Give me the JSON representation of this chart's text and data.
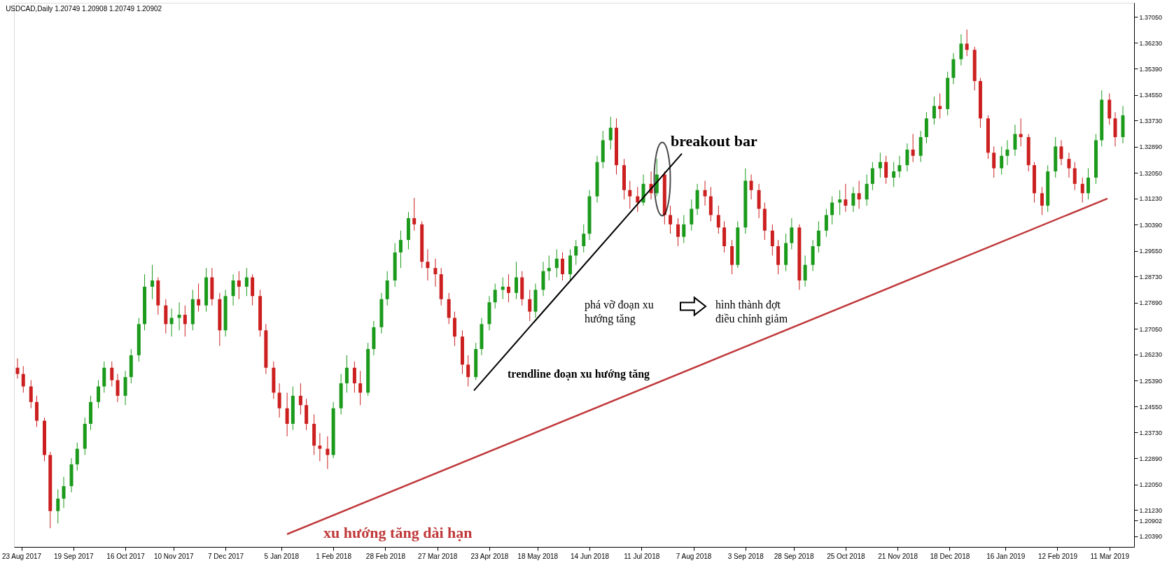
{
  "chart_data": {
    "type": "candlestick",
    "title": "USDCAD,Daily  1.20749 1.20908 1.20749 1.20902",
    "x": [
      "2017-08-21",
      "2017-08-24",
      "2017-08-28",
      "2017-08-31",
      "2017-09-04",
      "2017-09-07",
      "2017-09-11",
      "2017-09-14",
      "2017-09-18",
      "2017-09-21",
      "2017-09-25",
      "2017-09-28",
      "2017-10-02",
      "2017-10-05",
      "2017-10-09",
      "2017-10-12",
      "2017-10-16",
      "2017-10-19",
      "2017-10-23",
      "2017-10-26",
      "2017-10-30",
      "2017-11-02",
      "2017-11-06",
      "2017-11-09",
      "2017-11-13",
      "2017-11-16",
      "2017-11-20",
      "2017-11-23",
      "2017-11-27",
      "2017-11-30",
      "2017-12-04",
      "2017-12-07",
      "2017-12-11",
      "2017-12-14",
      "2017-12-18",
      "2017-12-21",
      "2017-12-25",
      "2017-12-28",
      "2018-01-01",
      "2018-01-04",
      "2018-01-08",
      "2018-01-11",
      "2018-01-15",
      "2018-01-18",
      "2018-01-22",
      "2018-01-25",
      "2018-01-29",
      "2018-02-01",
      "2018-02-05",
      "2018-02-08",
      "2018-02-12",
      "2018-02-15",
      "2018-02-19",
      "2018-02-22",
      "2018-02-26",
      "2018-03-01",
      "2018-03-05",
      "2018-03-08",
      "2018-03-12",
      "2018-03-15",
      "2018-03-19",
      "2018-03-22",
      "2018-03-26",
      "2018-03-29",
      "2018-04-02",
      "2018-04-05",
      "2018-04-09",
      "2018-04-12",
      "2018-04-16",
      "2018-04-19",
      "2018-04-23",
      "2018-04-26",
      "2018-04-30",
      "2018-05-03",
      "2018-05-07",
      "2018-05-10",
      "2018-05-14",
      "2018-05-17",
      "2018-05-21",
      "2018-05-24",
      "2018-05-28",
      "2018-05-31",
      "2018-06-04",
      "2018-06-07",
      "2018-06-11",
      "2018-06-14",
      "2018-06-18",
      "2018-06-21",
      "2018-06-25",
      "2018-06-28",
      "2018-07-02",
      "2018-07-05",
      "2018-07-09",
      "2018-07-12",
      "2018-07-16",
      "2018-07-19",
      "2018-07-23",
      "2018-07-26",
      "2018-07-30",
      "2018-08-02",
      "2018-08-06",
      "2018-08-09",
      "2018-08-13",
      "2018-08-16",
      "2018-08-20",
      "2018-08-23",
      "2018-08-27",
      "2018-08-30",
      "2018-09-03",
      "2018-09-06",
      "2018-09-10",
      "2018-09-13",
      "2018-09-17",
      "2018-09-20",
      "2018-09-24",
      "2018-09-27",
      "2018-10-01",
      "2018-10-04",
      "2018-10-08",
      "2018-10-11",
      "2018-10-15",
      "2018-10-18",
      "2018-10-22",
      "2018-10-25",
      "2018-10-29",
      "2018-11-01",
      "2018-11-05",
      "2018-11-08",
      "2018-11-12",
      "2018-11-15",
      "2018-11-19",
      "2018-11-22",
      "2018-11-26",
      "2018-11-29",
      "2018-12-03",
      "2018-12-06",
      "2018-12-10",
      "2018-12-13",
      "2018-12-17",
      "2018-12-20",
      "2018-12-24",
      "2018-12-27",
      "2018-12-31",
      "2019-01-03",
      "2019-01-07",
      "2019-01-10",
      "2019-01-14",
      "2019-01-17",
      "2019-01-21",
      "2019-01-24",
      "2019-01-28",
      "2019-01-31",
      "2019-02-04",
      "2019-02-07",
      "2019-02-11",
      "2019-02-14",
      "2019-02-18",
      "2019-02-21",
      "2019-02-25",
      "2019-02-28",
      "2019-03-04",
      "2019-03-07",
      "2019-03-11",
      "2019-03-14",
      "2019-03-18"
    ],
    "ohlc": [
      [
        1.258,
        1.261,
        1.2545,
        1.256
      ],
      [
        1.256,
        1.2585,
        1.25,
        1.252
      ],
      [
        1.252,
        1.254,
        1.245,
        1.247
      ],
      [
        1.247,
        1.249,
        1.239,
        1.241
      ],
      [
        1.241,
        1.242,
        1.228,
        1.23
      ],
      [
        1.23,
        1.231,
        1.2065,
        1.212
      ],
      [
        1.212,
        1.219,
        1.208,
        1.216
      ],
      [
        1.216,
        1.223,
        1.213,
        1.22
      ],
      [
        1.22,
        1.229,
        1.218,
        1.227
      ],
      [
        1.227,
        1.234,
        1.225,
        1.232
      ],
      [
        1.232,
        1.242,
        1.23,
        1.24
      ],
      [
        1.24,
        1.249,
        1.238,
        1.247
      ],
      [
        1.247,
        1.254,
        1.245,
        1.252
      ],
      [
        1.252,
        1.26,
        1.25,
        1.258
      ],
      [
        1.258,
        1.26,
        1.252,
        1.254
      ],
      [
        1.254,
        1.256,
        1.247,
        1.249
      ],
      [
        1.249,
        1.257,
        1.246,
        1.255
      ],
      [
        1.255,
        1.264,
        1.253,
        1.262
      ],
      [
        1.262,
        1.274,
        1.26,
        1.272
      ],
      [
        1.272,
        1.288,
        1.27,
        1.284
      ],
      [
        1.284,
        1.291,
        1.28,
        1.286
      ],
      [
        1.286,
        1.287,
        1.275,
        1.278
      ],
      [
        1.278,
        1.28,
        1.269,
        1.272
      ],
      [
        1.272,
        1.277,
        1.268,
        1.274
      ],
      [
        1.274,
        1.279,
        1.27,
        1.275
      ],
      [
        1.275,
        1.278,
        1.268,
        1.272
      ],
      [
        1.272,
        1.283,
        1.27,
        1.28
      ],
      [
        1.28,
        1.285,
        1.276,
        1.278
      ],
      [
        1.278,
        1.29,
        1.276,
        1.287
      ],
      [
        1.287,
        1.29,
        1.278,
        1.28
      ],
      [
        1.28,
        1.282,
        1.265,
        1.27
      ],
      [
        1.27,
        1.283,
        1.268,
        1.281
      ],
      [
        1.281,
        1.288,
        1.278,
        1.286
      ],
      [
        1.286,
        1.289,
        1.28,
        1.284
      ],
      [
        1.284,
        1.29,
        1.281,
        1.287
      ],
      [
        1.287,
        1.288,
        1.278,
        1.281
      ],
      [
        1.281,
        1.283,
        1.268,
        1.27
      ],
      [
        1.27,
        1.272,
        1.256,
        1.258
      ],
      [
        1.258,
        1.26,
        1.248,
        1.25
      ],
      [
        1.25,
        1.253,
        1.242,
        1.245
      ],
      [
        1.245,
        1.25,
        1.236,
        1.24
      ],
      [
        1.24,
        1.252,
        1.238,
        1.249
      ],
      [
        1.249,
        1.253,
        1.243,
        1.246
      ],
      [
        1.246,
        1.248,
        1.238,
        1.24
      ],
      [
        1.24,
        1.243,
        1.23,
        1.233
      ],
      [
        1.233,
        1.237,
        1.228,
        1.232
      ],
      [
        1.232,
        1.236,
        1.2255,
        1.23
      ],
      [
        1.23,
        1.247,
        1.229,
        1.245
      ],
      [
        1.245,
        1.256,
        1.243,
        1.253
      ],
      [
        1.253,
        1.262,
        1.25,
        1.258
      ],
      [
        1.258,
        1.26,
        1.25,
        1.253
      ],
      [
        1.253,
        1.257,
        1.246,
        1.25
      ],
      [
        1.25,
        1.266,
        1.249,
        1.264
      ],
      [
        1.264,
        1.273,
        1.262,
        1.271
      ],
      [
        1.271,
        1.282,
        1.269,
        1.28
      ],
      [
        1.28,
        1.289,
        1.278,
        1.286
      ],
      [
        1.286,
        1.298,
        1.284,
        1.295
      ],
      [
        1.295,
        1.302,
        1.29,
        1.299
      ],
      [
        1.299,
        1.308,
        1.296,
        1.306
      ],
      [
        1.306,
        1.3125,
        1.302,
        1.304
      ],
      [
        1.304,
        1.305,
        1.29,
        1.292
      ],
      [
        1.292,
        1.296,
        1.286,
        1.29
      ],
      [
        1.29,
        1.293,
        1.284,
        1.288
      ],
      [
        1.288,
        1.29,
        1.278,
        1.28
      ],
      [
        1.28,
        1.282,
        1.272,
        1.274
      ],
      [
        1.274,
        1.276,
        1.265,
        1.268
      ],
      [
        1.268,
        1.27,
        1.256,
        1.259
      ],
      [
        1.259,
        1.262,
        1.252,
        1.255
      ],
      [
        1.255,
        1.266,
        1.254,
        1.264
      ],
      [
        1.264,
        1.274,
        1.262,
        1.272
      ],
      [
        1.272,
        1.281,
        1.27,
        1.279
      ],
      [
        1.279,
        1.285,
        1.277,
        1.283
      ],
      [
        1.283,
        1.287,
        1.28,
        1.284
      ],
      [
        1.284,
        1.288,
        1.279,
        1.282
      ],
      [
        1.282,
        1.292,
        1.28,
        1.287
      ],
      [
        1.287,
        1.289,
        1.278,
        1.28
      ],
      [
        1.28,
        1.283,
        1.273,
        1.276
      ],
      [
        1.276,
        1.285,
        1.274,
        1.283
      ],
      [
        1.283,
        1.292,
        1.281,
        1.289
      ],
      [
        1.289,
        1.294,
        1.286,
        1.29
      ],
      [
        1.29,
        1.296,
        1.287,
        1.293
      ],
      [
        1.293,
        1.295,
        1.286,
        1.288
      ],
      [
        1.288,
        1.296,
        1.286,
        1.294
      ],
      [
        1.294,
        1.299,
        1.291,
        1.297
      ],
      [
        1.297,
        1.304,
        1.295,
        1.301
      ],
      [
        1.301,
        1.315,
        1.299,
        1.313
      ],
      [
        1.313,
        1.326,
        1.311,
        1.324
      ],
      [
        1.324,
        1.334,
        1.322,
        1.331
      ],
      [
        1.331,
        1.3385,
        1.328,
        1.335
      ],
      [
        1.335,
        1.338,
        1.32,
        1.323
      ],
      [
        1.323,
        1.325,
        1.312,
        1.315
      ],
      [
        1.315,
        1.318,
        1.309,
        1.313
      ],
      [
        1.313,
        1.316,
        1.308,
        1.311
      ],
      [
        1.311,
        1.32,
        1.31,
        1.317
      ],
      [
        1.317,
        1.321,
        1.312,
        1.314
      ],
      [
        1.314,
        1.325,
        1.313,
        1.32
      ],
      [
        1.32,
        1.321,
        1.304,
        1.307
      ],
      [
        1.307,
        1.31,
        1.301,
        1.304
      ],
      [
        1.304,
        1.306,
        1.297,
        1.3
      ],
      [
        1.3,
        1.307,
        1.298,
        1.304
      ],
      [
        1.304,
        1.312,
        1.302,
        1.309
      ],
      [
        1.309,
        1.317,
        1.307,
        1.315
      ],
      [
        1.315,
        1.318,
        1.31,
        1.313
      ],
      [
        1.313,
        1.316,
        1.305,
        1.307
      ],
      [
        1.307,
        1.31,
        1.301,
        1.303
      ],
      [
        1.303,
        1.305,
        1.295,
        1.297
      ],
      [
        1.297,
        1.299,
        1.288,
        1.291
      ],
      [
        1.291,
        1.305,
        1.29,
        1.303
      ],
      [
        1.303,
        1.322,
        1.301,
        1.318
      ],
      [
        1.318,
        1.32,
        1.312,
        1.315
      ],
      [
        1.315,
        1.317,
        1.306,
        1.309
      ],
      [
        1.309,
        1.311,
        1.299,
        1.302
      ],
      [
        1.302,
        1.304,
        1.294,
        1.297
      ],
      [
        1.297,
        1.299,
        1.288,
        1.291
      ],
      [
        1.291,
        1.301,
        1.289,
        1.298
      ],
      [
        1.298,
        1.306,
        1.296,
        1.303
      ],
      [
        1.303,
        1.304,
        1.283,
        1.286
      ],
      [
        1.286,
        1.294,
        1.284,
        1.291
      ],
      [
        1.291,
        1.299,
        1.289,
        1.297
      ],
      [
        1.297,
        1.305,
        1.295,
        1.302
      ],
      [
        1.302,
        1.309,
        1.3,
        1.307
      ],
      [
        1.307,
        1.313,
        1.304,
        1.311
      ],
      [
        1.311,
        1.315,
        1.307,
        1.312
      ],
      [
        1.312,
        1.317,
        1.308,
        1.31
      ],
      [
        1.31,
        1.316,
        1.308,
        1.314
      ],
      [
        1.314,
        1.318,
        1.309,
        1.312
      ],
      [
        1.312,
        1.32,
        1.31,
        1.317
      ],
      [
        1.317,
        1.324,
        1.315,
        1.322
      ],
      [
        1.322,
        1.327,
        1.319,
        1.324
      ],
      [
        1.324,
        1.326,
        1.317,
        1.319
      ],
      [
        1.319,
        1.324,
        1.316,
        1.321
      ],
      [
        1.321,
        1.326,
        1.319,
        1.323
      ],
      [
        1.323,
        1.33,
        1.321,
        1.328
      ],
      [
        1.328,
        1.333,
        1.324,
        1.326
      ],
      [
        1.326,
        1.334,
        1.324,
        1.332
      ],
      [
        1.332,
        1.34,
        1.33,
        1.338
      ],
      [
        1.338,
        1.345,
        1.336,
        1.342
      ],
      [
        1.342,
        1.346,
        1.338,
        1.341
      ],
      [
        1.341,
        1.353,
        1.339,
        1.351
      ],
      [
        1.351,
        1.359,
        1.349,
        1.357
      ],
      [
        1.357,
        1.365,
        1.355,
        1.362
      ],
      [
        1.362,
        1.3665,
        1.358,
        1.36
      ],
      [
        1.36,
        1.361,
        1.347,
        1.35
      ],
      [
        1.35,
        1.351,
        1.335,
        1.338
      ],
      [
        1.338,
        1.339,
        1.325,
        1.327
      ],
      [
        1.327,
        1.329,
        1.319,
        1.322
      ],
      [
        1.322,
        1.329,
        1.32,
        1.326
      ],
      [
        1.326,
        1.331,
        1.323,
        1.328
      ],
      [
        1.328,
        1.336,
        1.326,
        1.333
      ],
      [
        1.333,
        1.338,
        1.329,
        1.332
      ],
      [
        1.332,
        1.333,
        1.321,
        1.323
      ],
      [
        1.323,
        1.324,
        1.311,
        1.314
      ],
      [
        1.314,
        1.316,
        1.307,
        1.31
      ],
      [
        1.31,
        1.323,
        1.308,
        1.321
      ],
      [
        1.321,
        1.332,
        1.319,
        1.329
      ],
      [
        1.329,
        1.331,
        1.323,
        1.325
      ],
      [
        1.325,
        1.327,
        1.319,
        1.322
      ],
      [
        1.322,
        1.324,
        1.315,
        1.317
      ],
      [
        1.317,
        1.319,
        1.311,
        1.314
      ],
      [
        1.314,
        1.322,
        1.312,
        1.319
      ],
      [
        1.319,
        1.333,
        1.317,
        1.331
      ],
      [
        1.331,
        1.347,
        1.329,
        1.344
      ],
      [
        1.344,
        1.346,
        1.336,
        1.338
      ],
      [
        1.338,
        1.34,
        1.329,
        1.332
      ],
      [
        1.332,
        1.342,
        1.33,
        1.339
      ]
    ],
    "colors": [
      "#cc1f1f",
      "#cc1f1f",
      "#cc1f1f",
      "#cc1f1f",
      "#cc1f1f",
      "#cc1f1f",
      "#1b9a1b",
      "#1b9a1b",
      "#1b9a1b",
      "#1b9a1b",
      "#1b9a1b",
      "#1b9a1b",
      "#1b9a1b",
      "#1b9a1b",
      "#cc1f1f",
      "#cc1f1f",
      "#1b9a1b",
      "#1b9a1b",
      "#1b9a1b",
      "#1b9a1b",
      "#1b9a1b",
      "#cc1f1f",
      "#cc1f1f",
      "#1b9a1b",
      "#1b9a1b",
      "#cc1f1f",
      "#1b9a1b",
      "#cc1f1f",
      "#1b9a1b",
      "#cc1f1f",
      "#cc1f1f",
      "#1b9a1b",
      "#1b9a1b",
      "#cc1f1f",
      "#1b9a1b",
      "#cc1f1f",
      "#cc1f1f",
      "#cc1f1f",
      "#cc1f1f",
      "#cc1f1f",
      "#cc1f1f",
      "#1b9a1b",
      "#cc1f1f",
      "#cc1f1f",
      "#cc1f1f",
      "#cc1f1f",
      "#cc1f1f",
      "#1b9a1b",
      "#1b9a1b",
      "#1b9a1b",
      "#cc1f1f",
      "#cc1f1f",
      "#1b9a1b",
      "#1b9a1b",
      "#1b9a1b",
      "#1b9a1b",
      "#1b9a1b",
      "#1b9a1b",
      "#1b9a1b",
      "#cc1f1f",
      "#cc1f1f",
      "#cc1f1f",
      "#cc1f1f",
      "#cc1f1f",
      "#cc1f1f",
      "#cc1f1f",
      "#cc1f1f",
      "#cc1f1f",
      "#1b9a1b",
      "#1b9a1b",
      "#1b9a1b",
      "#1b9a1b",
      "#1b9a1b",
      "#cc1f1f",
      "#1b9a1b",
      "#cc1f1f",
      "#cc1f1f",
      "#1b9a1b",
      "#1b9a1b",
      "#1b9a1b",
      "#1b9a1b",
      "#cc1f1f",
      "#1b9a1b",
      "#1b9a1b",
      "#1b9a1b",
      "#1b9a1b",
      "#1b9a1b",
      "#1b9a1b",
      "#1b9a1b",
      "#cc1f1f",
      "#cc1f1f",
      "#cc1f1f",
      "#cc1f1f",
      "#1b9a1b",
      "#cc1f1f",
      "#1b9a1b",
      "#cc1f1f",
      "#cc1f1f",
      "#cc1f1f",
      "#1b9a1b",
      "#1b9a1b",
      "#1b9a1b",
      "#cc1f1f",
      "#cc1f1f",
      "#cc1f1f",
      "#cc1f1f",
      "#cc1f1f",
      "#1b9a1b",
      "#1b9a1b",
      "#cc1f1f",
      "#cc1f1f",
      "#cc1f1f",
      "#cc1f1f",
      "#cc1f1f",
      "#1b9a1b",
      "#1b9a1b",
      "#cc1f1f",
      "#1b9a1b",
      "#1b9a1b",
      "#1b9a1b",
      "#1b9a1b",
      "#1b9a1b",
      "#1b9a1b",
      "#cc1f1f",
      "#1b9a1b",
      "#cc1f1f",
      "#1b9a1b",
      "#1b9a1b",
      "#1b9a1b",
      "#cc1f1f",
      "#1b9a1b",
      "#1b9a1b",
      "#1b9a1b",
      "#cc1f1f",
      "#1b9a1b",
      "#1b9a1b",
      "#1b9a1b",
      "#cc1f1f",
      "#1b9a1b",
      "#1b9a1b",
      "#1b9a1b",
      "#cc1f1f",
      "#cc1f1f",
      "#cc1f1f",
      "#cc1f1f",
      "#cc1f1f",
      "#1b9a1b",
      "#1b9a1b",
      "#1b9a1b",
      "#cc1f1f",
      "#cc1f1f",
      "#cc1f1f",
      "#cc1f1f",
      "#1b9a1b",
      "#1b9a1b",
      "#cc1f1f",
      "#cc1f1f",
      "#cc1f1f",
      "#cc1f1f",
      "#1b9a1b",
      "#1b9a1b",
      "#1b9a1b",
      "#cc1f1f",
      "#cc1f1f",
      "#1b9a1b"
    ],
    "series": [
      {
        "type": "line",
        "color": "#000000",
        "x": [
          "2018-04-15",
          "2018-08-01"
        ],
        "values": [
          1.2507,
          1.3267
        ]
      },
      {
        "type": "line",
        "color": "#c0393b",
        "x": [
          "2018-01-08",
          "2019-03-10"
        ],
        "values": [
          1.2046,
          1.3123
        ]
      }
    ],
    "annotations": [
      "breakout bar",
      "phá vỡ đoạn xu\nhướng tăng",
      "hình thành đợt\nđiều chỉnh giảm",
      "trendline đoạn xu hướng tăng",
      "xu hướng tăng dài hạn"
    ],
    "xlim": [
      "2017-08-21",
      "2019-03-22"
    ],
    "ylim": [
      1.2005,
      1.3751
    ],
    "xticks": [
      {
        "value": "2017-08-23",
        "label": "23 Aug 2017"
      },
      {
        "value": "2017-09-19",
        "label": "19 Sep 2017"
      },
      {
        "value": "2017-10-16",
        "label": "16 Oct 2017"
      },
      {
        "value": "2017-11-10",
        "label": "10 Nov 2017"
      },
      {
        "value": "2017-12-07",
        "label": "7 Dec 2017"
      },
      {
        "value": "2018-01-05",
        "label": "5 Jan 2018"
      },
      {
        "value": "2018-02-01",
        "label": "1 Feb 2018"
      },
      {
        "value": "2018-02-28",
        "label": "28 Feb 2018"
      },
      {
        "value": "2018-03-27",
        "label": "27 Mar 2018"
      },
      {
        "value": "2018-04-23",
        "label": "23 Apr 2018"
      },
      {
        "value": "2018-05-18",
        "label": "18 May 2018"
      },
      {
        "value": "2018-06-14",
        "label": "14 Jun 2018"
      },
      {
        "value": "2018-07-11",
        "label": "11 Jul 2018"
      },
      {
        "value": "2018-08-07",
        "label": "7 Aug 2018"
      },
      {
        "value": "2018-09-03",
        "label": "3 Sep 2018"
      },
      {
        "value": "2018-09-28",
        "label": "28 Sep 2018"
      },
      {
        "value": "2018-10-25",
        "label": "25 Oct 2018"
      },
      {
        "value": "2018-11-21",
        "label": "21 Nov 2018"
      },
      {
        "value": "2018-12-18",
        "label": "18 Dec 2018"
      },
      {
        "value": "2019-01-16",
        "label": "16 Jan 2019"
      },
      {
        "value": "2019-02-12",
        "label": "12 Feb 2019"
      },
      {
        "value": "2019-03-11",
        "label": "11 Mar 2019"
      }
    ],
    "yticks": [
      {
        "value": 1.2039,
        "label": "1.20390"
      },
      {
        "value": 1.20902,
        "label": "1.20902"
      },
      {
        "value": 1.2123,
        "label": "1.21230"
      },
      {
        "value": 1.2205,
        "label": "1.22050"
      },
      {
        "value": 1.2289,
        "label": "1.22890"
      },
      {
        "value": 1.2373,
        "label": "1.23730"
      },
      {
        "value": 1.2455,
        "label": "1.24550"
      },
      {
        "value": 1.2539,
        "label": "1.25390"
      },
      {
        "value": 1.2623,
        "label": "1.26230"
      },
      {
        "value": 1.2705,
        "label": "1.27050"
      },
      {
        "value": 1.2789,
        "label": "1.27890"
      },
      {
        "value": 1.2873,
        "label": "1.28730"
      },
      {
        "value": 1.2955,
        "label": "1.29550"
      },
      {
        "value": 1.3039,
        "label": "1.30390"
      },
      {
        "value": 1.3123,
        "label": "1.31230"
      },
      {
        "value": 1.3205,
        "label": "1.32050"
      },
      {
        "value": 1.3289,
        "label": "1.32890"
      },
      {
        "value": 1.3373,
        "label": "1.33730"
      },
      {
        "value": 1.3455,
        "label": "1.34550"
      },
      {
        "value": 1.3539,
        "label": "1.35390"
      },
      {
        "value": 1.3623,
        "label": "1.36230"
      },
      {
        "value": 1.3705,
        "label": "1.37050"
      }
    ],
    "grid": false
  }
}
